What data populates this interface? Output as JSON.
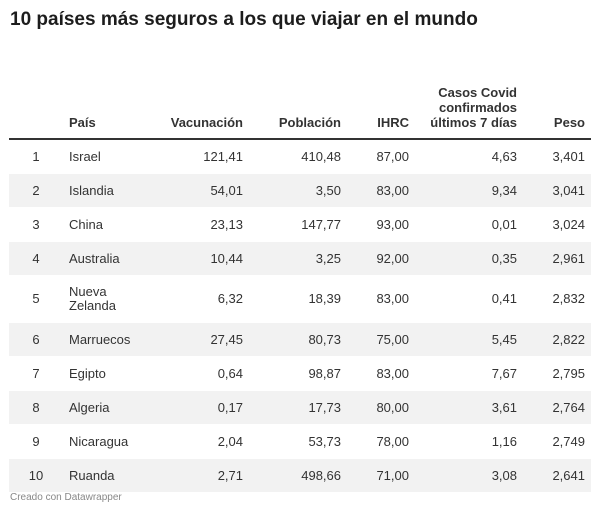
{
  "title": "10 países más seguros a los que viajar en el mundo",
  "footer": "Creado con Datawrapper",
  "chart_data": {
    "type": "table",
    "columns": [
      "",
      "País",
      "Vacunación",
      "Población",
      "IHRC",
      "Casos Covid confirmados últimos 7 días",
      "Peso"
    ],
    "rows": [
      [
        "1",
        "Israel",
        "121,41",
        "410,48",
        "87,00",
        "4,63",
        "3,401"
      ],
      [
        "2",
        "Islandia",
        "54,01",
        "3,50",
        "83,00",
        "9,34",
        "3,041"
      ],
      [
        "3",
        "China",
        "23,13",
        "147,77",
        "93,00",
        "0,01",
        "3,024"
      ],
      [
        "4",
        "Australia",
        "10,44",
        "3,25",
        "92,00",
        "0,35",
        "2,961"
      ],
      [
        "5",
        "Nueva Zelanda",
        "6,32",
        "18,39",
        "83,00",
        "0,41",
        "2,832"
      ],
      [
        "6",
        "Marruecos",
        "27,45",
        "80,73",
        "75,00",
        "5,45",
        "2,822"
      ],
      [
        "7",
        "Egipto",
        "0,64",
        "98,87",
        "83,00",
        "7,67",
        "2,795"
      ],
      [
        "8",
        "Algeria",
        "0,17",
        "17,73",
        "80,00",
        "3,61",
        "2,764"
      ],
      [
        "9",
        "Nicaragua",
        "2,04",
        "53,73",
        "78,00",
        "1,16",
        "2,749"
      ],
      [
        "10",
        "Ruanda",
        "2,71",
        "498,66",
        "71,00",
        "3,08",
        "2,641"
      ]
    ]
  }
}
